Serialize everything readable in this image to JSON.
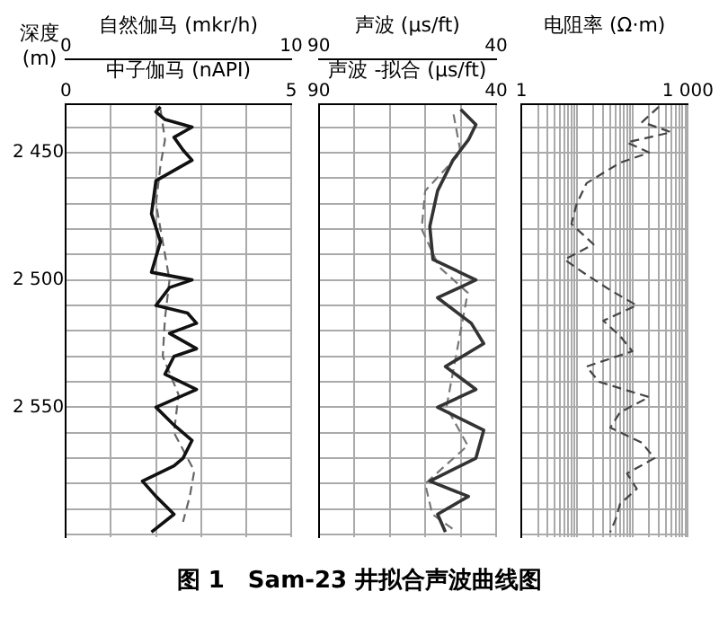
{
  "chart_data": [
    {
      "type": "line",
      "title": "图 1　Sam-23 井拟合声波曲线图",
      "ylabel": "深度 (m)",
      "x2label": "中子伽马 (nAPI)",
      "xlabel": "自然伽马 (mkr/h)",
      "marker": "none",
      "grid": true,
      "legend": false,
      "ylim": [
        2601,
        2431
      ],
      "yticks": [
        {
          "value": 2440,
          "label": null
        },
        {
          "value": 2450,
          "label": "2 450"
        },
        {
          "value": 2460,
          "label": null
        },
        {
          "value": 2470,
          "label": null
        },
        {
          "value": 2480,
          "label": null
        },
        {
          "value": 2490,
          "label": null
        },
        {
          "value": 2500,
          "label": "2 500"
        },
        {
          "value": 2510,
          "label": null
        },
        {
          "value": 2520,
          "label": null
        },
        {
          "value": 2530,
          "label": null
        },
        {
          "value": 2540,
          "label": null
        },
        {
          "value": 2550,
          "label": "2 550"
        },
        {
          "value": 2560,
          "label": null
        },
        {
          "value": 2570,
          "label": null
        },
        {
          "value": 2580,
          "label": null
        },
        {
          "value": 2590,
          "label": null
        },
        {
          "value": 2600,
          "label": null
        }
      ],
      "xlim": [
        0,
        10
      ],
      "xticks": [
        0,
        {
          "value": 2,
          "label": null
        },
        {
          "value": 4,
          "label": null
        },
        {
          "value": 6,
          "label": null
        },
        {
          "value": 8,
          "label": null
        },
        10
      ],
      "x2lim": [
        0,
        5
      ],
      "x2ticks": [
        0,
        5
      ],
      "series": [
        {
          "color": "#111111",
          "axis": "x2",
          "line_style": "solid",
          "x": [
            2.1,
            2.0,
            2.2,
            2.8,
            2.4,
            2.6,
            2.8,
            2.0,
            1.9,
            2.1,
            1.9,
            2.8,
            2.3,
            2.0,
            2.7,
            2.9,
            2.3,
            2.9,
            2.4,
            2.2,
            2.9,
            2.0,
            2.4,
            2.8,
            2.6,
            2.4,
            1.7,
            2.0,
            2.4,
            1.9
          ],
          "values": [
            2432,
            2434,
            2437,
            2440,
            2444,
            2449,
            2453,
            2461,
            2474,
            2485,
            2497,
            2500,
            2503,
            2510,
            2513,
            2517,
            2521,
            2527,
            2530,
            2537,
            2543,
            2550,
            2557,
            2563,
            2570,
            2573,
            2579,
            2585,
            2592,
            2599
          ]
        },
        {
          "color": "#666666",
          "line_style": "dashed",
          "x": [
            4.2,
            4.4,
            4.2,
            4.0,
            4.3,
            4.6,
            4.4,
            4.3,
            5.0,
            4.8,
            5.7,
            5.5,
            5.2
          ],
          "values": [
            2433,
            2445,
            2455,
            2470,
            2485,
            2500,
            2515,
            2530,
            2545,
            2560,
            2575,
            2585,
            2595
          ]
        }
      ]
    },
    {
      "type": "line",
      "x2label": "声波 -拟合 (μs/ft)",
      "xlabel": "声波 (μs/ft)",
      "marker": "none",
      "grid": true,
      "legend": false,
      "tick_labels": "x",
      "ylim": [
        2601,
        2431
      ],
      "yticks": [
        2440,
        2450,
        2460,
        2470,
        2480,
        2490,
        2500,
        2510,
        2520,
        2530,
        2540,
        2550,
        2560,
        2570,
        2580,
        2590,
        2600
      ],
      "xlim": [
        90,
        40
      ],
      "xticks": [
        90,
        {
          "value": 80,
          "label": null
        },
        {
          "value": 70,
          "label": null
        },
        {
          "value": 60,
          "label": null
        },
        {
          "value": 50,
          "label": null
        },
        40
      ],
      "x2lim": [
        90,
        40
      ],
      "x2ticks": [
        90,
        40
      ],
      "series": [
        {
          "color": "#333333",
          "axis": "x2",
          "line_style": "solid",
          "x": [
            50,
            45.7,
            47.8,
            52.2,
            56.5,
            58.7,
            57.8,
            45.7,
            56.5,
            47,
            43.5,
            54.3,
            45.7,
            56.5,
            43.5,
            45.7,
            58.7,
            47.8,
            56.5,
            54.3
          ],
          "values": [
            2433,
            2439,
            2445,
            2453,
            2465,
            2479,
            2492,
            2500,
            2507,
            2517,
            2525,
            2534,
            2543,
            2550,
            2559,
            2570,
            2579,
            2585,
            2592,
            2599
          ]
        },
        {
          "color": "#777777",
          "line_style": "dashed",
          "x": [
            52,
            50,
            60,
            61,
            56,
            48,
            50,
            52,
            54,
            48,
            60,
            58,
            52
          ],
          "values": [
            2435,
            2450,
            2465,
            2480,
            2495,
            2505,
            2520,
            2535,
            2550,
            2565,
            2580,
            2592,
            2598
          ]
        }
      ]
    },
    {
      "type": "line",
      "xlabel": "电阻率 (Ω·m)",
      "marker": "none",
      "grid": true,
      "legend": false,
      "tick_labels": "x",
      "log": "x",
      "ylim": [
        2601,
        2431
      ],
      "yticks": [
        2440,
        2450,
        2460,
        2470,
        2480,
        2490,
        2500,
        2510,
        2520,
        2530,
        2540,
        2550,
        2560,
        2570,
        2580,
        2590,
        2600
      ],
      "xlim": [
        1,
        1000
      ],
      "xticks": [
        1,
        {
          "value": 2,
          "label": null
        },
        {
          "value": 3,
          "label": null
        },
        {
          "value": 4,
          "label": null
        },
        {
          "value": 5,
          "label": null
        },
        {
          "value": 6,
          "label": null
        },
        {
          "value": 7,
          "label": null
        },
        {
          "value": 8,
          "label": null
        },
        {
          "value": 9,
          "label": null
        },
        {
          "value": 10,
          "label": null
        },
        {
          "value": 20,
          "label": null
        },
        {
          "value": 30,
          "label": null
        },
        {
          "value": 40,
          "label": null
        },
        {
          "value": 50,
          "label": null
        },
        {
          "value": 60,
          "label": null
        },
        {
          "value": 70,
          "label": null
        },
        {
          "value": 80,
          "label": null
        },
        {
          "value": 90,
          "label": null
        },
        {
          "value": 100,
          "label": null
        },
        {
          "value": 200,
          "label": null
        },
        {
          "value": 300,
          "label": null
        },
        {
          "value": 400,
          "label": null
        },
        {
          "value": 500,
          "label": null
        },
        {
          "value": 600,
          "label": null
        },
        {
          "value": 700,
          "label": null
        },
        {
          "value": 800,
          "label": null
        },
        {
          "value": 900,
          "label": null
        },
        {
          "value": 1000,
          "label": "1 000"
        }
      ],
      "series": [
        {
          "color": "#444444",
          "line_style": "dashed",
          "x": [
            300,
            150,
            500,
            80,
            200,
            60,
            30,
            15,
            10,
            8,
            20,
            6,
            15,
            40,
            120,
            30,
            60,
            100,
            15,
            25,
            200,
            60,
            40,
            150,
            250,
            80,
            120,
            60,
            50,
            40
          ],
          "values": [
            2432,
            2438,
            2442,
            2446,
            2450,
            2454,
            2458,
            2462,
            2470,
            2478,
            2486,
            2492,
            2498,
            2504,
            2510,
            2516,
            2522,
            2528,
            2534,
            2540,
            2546,
            2552,
            2558,
            2564,
            2570,
            2576,
            2582,
            2588,
            2594,
            2599
          ]
        }
      ]
    }
  ]
}
